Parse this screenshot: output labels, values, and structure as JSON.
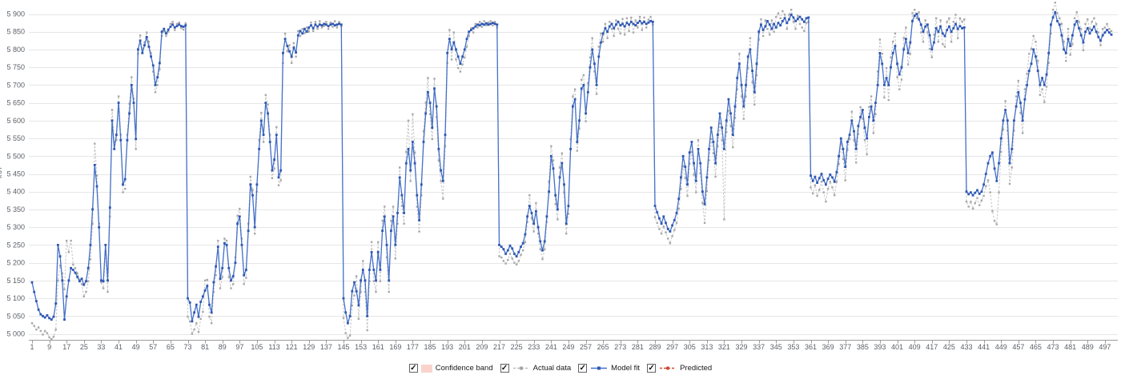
{
  "chart": {
    "y_axis_title": "x67"
  },
  "legend": {
    "items": [
      {
        "id": "confidence-band",
        "label": "Confidence band",
        "checked": true,
        "swatch": "band",
        "color": "#f8d4cc"
      },
      {
        "id": "actual-data",
        "label": "Actual data",
        "checked": true,
        "swatch": "line",
        "line_style": "dashed",
        "color": "#bdbdbd",
        "marker": "square",
        "marker_color": "#a6a6a6"
      },
      {
        "id": "model-fit",
        "label": "Model fit",
        "checked": true,
        "swatch": "line",
        "line_style": "solid",
        "color": "#4470c8",
        "marker": "square",
        "marker_color": "#2e57b2"
      },
      {
        "id": "predicted",
        "label": "Predicted",
        "checked": true,
        "swatch": "line",
        "line_style": "dashed",
        "color": "#cc4a31",
        "marker": "circle",
        "marker_color": "#cc4a31"
      }
    ]
  },
  "chart_data": {
    "type": "line",
    "title": "",
    "xlabel": "",
    "ylabel": "x67",
    "x_start": 1,
    "x_count": 500,
    "y_min": 5000,
    "y_max": 5900,
    "y_step": 50,
    "grid": "horizontal",
    "legend_position": "bottom",
    "x_tick_labels": [
      1,
      9,
      17,
      25,
      33,
      41,
      49,
      57,
      65,
      73,
      81,
      89,
      97,
      105,
      113,
      121,
      129,
      137,
      145,
      153,
      161,
      169,
      177,
      185,
      193,
      201,
      209,
      217,
      225,
      233,
      241,
      249,
      257,
      265,
      273,
      281,
      289,
      297,
      305,
      313,
      321,
      329,
      337,
      345,
      353,
      361,
      369,
      377,
      385,
      393,
      401,
      409,
      417,
      425,
      433,
      441,
      449,
      457,
      465,
      473,
      481,
      489,
      497
    ],
    "y_tick_labels": [
      "5 000",
      "5 050",
      "5 100",
      "5 150",
      "5 200",
      "5 250",
      "5 300",
      "5 350",
      "5 400",
      "5 450",
      "5 500",
      "5 550",
      "5 600",
      "5 650",
      "5 700",
      "5 750",
      "5 800",
      "5 850",
      "5 900"
    ],
    "series": [
      {
        "name": "Actual data",
        "type": "line",
        "line_style": "dashed",
        "color": "#c2c2c2",
        "marker": "square",
        "marker_color": "#a8a8a8",
        "marker_size": 2.4,
        "line_width": 1,
        "values": [
          5030,
          5022,
          5012,
          5018,
          5008,
          4998,
          5008,
          5002,
          4990,
          4985,
          4992,
          5012,
          5150,
          5192,
          5170,
          5125,
          5262,
          5230,
          5262,
          5195,
          5185,
          5170,
          5152,
          5140,
          5105,
          5118,
          5148,
          5210,
          5310,
          5535,
          5445,
          5310,
          5145,
          5128,
          5232,
          5118,
          5330,
          5630,
          5540,
          5545,
          5668,
          5560,
          5398,
          5408,
          5560,
          5648,
          5722,
          5662,
          5520,
          5788,
          5840,
          5800,
          5820,
          5848,
          5822,
          5790,
          5738,
          5680,
          5700,
          5745,
          5838,
          5852,
          5838,
          5850,
          5872,
          5878,
          5855,
          5872,
          5876,
          5860,
          5856,
          5874,
          5048,
          5035,
          5000,
          5012,
          5030,
          5005,
          5042,
          5062,
          5150,
          5152,
          5048,
          5030,
          5118,
          5165,
          5262,
          5128,
          5160,
          5268,
          5262,
          5160,
          5128,
          5140,
          5215,
          5332,
          5352,
          5268,
          5140,
          5158,
          5310,
          5442,
          5405,
          5282,
          5400,
          5545,
          5622,
          5540,
          5672,
          5645,
          5560,
          5438,
          5465,
          5582,
          5418,
          5432,
          5762,
          5845,
          5795,
          5812,
          5762,
          5818,
          5780,
          5852,
          5838,
          5858,
          5846,
          5862,
          5850,
          5876,
          5852,
          5878,
          5858,
          5880,
          5862,
          5866,
          5878,
          5858,
          5876,
          5864,
          5880,
          5862,
          5878,
          5866,
          5045,
          5002,
          4988,
          4995,
          5080,
          5108,
          5162,
          5042,
          5118,
          5205,
          5118,
          5010,
          5148,
          5258,
          5148,
          5118,
          5258,
          5148,
          5318,
          5358,
          5215,
          5118,
          5318,
          5358,
          5212,
          5310,
          5468,
          5360,
          5310,
          5512,
          5600,
          5430,
          5618,
          5510,
          5358,
          5288,
          5390,
          5570,
          5650,
          5720,
          5618,
          5548,
          5718,
          5610,
          5488,
          5430,
          5380,
          5528,
          5762,
          5855,
          5772,
          5848,
          5772,
          5748,
          5738,
          5758,
          5778,
          5808,
          5838,
          5860,
          5848,
          5872,
          5862,
          5878,
          5864,
          5880,
          5868,
          5876,
          5880,
          5868,
          5878,
          5862,
          5218,
          5215,
          5205,
          5198,
          5208,
          5225,
          5212,
          5200,
          5195,
          5205,
          5222,
          5235,
          5258,
          5315,
          5390,
          5325,
          5288,
          5368,
          5282,
          5238,
          5210,
          5238,
          5315,
          5428,
          5528,
          5488,
          5365,
          5322,
          5468,
          5508,
          5398,
          5282,
          5338,
          5548,
          5668,
          5688,
          5515,
          5578,
          5715,
          5728,
          5598,
          5705,
          5778,
          5832,
          5738,
          5675,
          5808,
          5845,
          5822,
          5872,
          5832,
          5878,
          5858,
          5838,
          5882,
          5858,
          5845,
          5886,
          5842,
          5888,
          5852,
          5890,
          5848,
          5882,
          5862,
          5892,
          5855,
          5890,
          5862,
          5884,
          5892,
          5870,
          5328,
          5312,
          5295,
          5282,
          5302,
          5285,
          5268,
          5255,
          5275,
          5292,
          5312,
          5352,
          5408,
          5472,
          5438,
          5388,
          5478,
          5512,
          5448,
          5398,
          5545,
          5452,
          5368,
          5312,
          5402,
          5488,
          5548,
          5508,
          5442,
          5528,
          5592,
          5545,
          5322,
          5568,
          5628,
          5585,
          5525,
          5608,
          5688,
          5788,
          5668,
          5605,
          5668,
          5748,
          5832,
          5708,
          5645,
          5728,
          5828,
          5885,
          5838,
          5882,
          5858,
          5842,
          5882,
          5850,
          5892,
          5902,
          5888,
          5908,
          5898,
          5858,
          5898,
          5912,
          5878,
          5858,
          5895,
          5872,
          5862,
          5852,
          5875,
          5878,
          5412,
          5395,
          5418,
          5388,
          5405,
          5428,
          5398,
          5372,
          5408,
          5428,
          5412,
          5390,
          5428,
          5478,
          5535,
          5492,
          5432,
          5518,
          5548,
          5625,
          5545,
          5482,
          5562,
          5638,
          5605,
          5545,
          5505,
          5638,
          5668,
          5565,
          5618,
          5738,
          5828,
          5788,
          5665,
          5748,
          5658,
          5778,
          5822,
          5845,
          5722,
          5688,
          5715,
          5832,
          5862,
          5758,
          5788,
          5902,
          5912,
          5888,
          5905,
          5848,
          5822,
          5882,
          5848,
          5802,
          5778,
          5842,
          5888,
          5822,
          5882,
          5815,
          5808,
          5878,
          5888,
          5822,
          5878,
          5898,
          5832,
          5888,
          5878,
          5885,
          5372,
          5358,
          5372,
          5352,
          5368,
          5382,
          5362,
          5375,
          5388,
          5415,
          5432,
          5398,
          5345,
          5318,
          5308,
          5398,
          5512,
          5575,
          5655,
          5572,
          5422,
          5468,
          5572,
          5668,
          5712,
          5622,
          5565,
          5688,
          5732,
          5788,
          5802,
          5838,
          5822,
          5768,
          5672,
          5688,
          5652,
          5695,
          5762,
          5845,
          5912,
          5932,
          5902,
          5888,
          5872,
          5822,
          5768,
          5858,
          5785,
          5815,
          5888,
          5905,
          5878,
          5858,
          5798,
          5872,
          5885,
          5858,
          5878,
          5888,
          5872,
          5848,
          5812,
          5858,
          5862,
          5872,
          5858,
          5852
        ]
      },
      {
        "name": "Model fit",
        "type": "line",
        "line_style": "solid",
        "color": "#4470c8",
        "marker": "square",
        "marker_color": "#2e57b2",
        "marker_size": 2.8,
        "line_width": 1.3,
        "values": [
          5145,
          5118,
          5092,
          5068,
          5055,
          5050,
          5046,
          5052,
          5044,
          5040,
          5048,
          5085,
          5250,
          5218,
          5150,
          5040,
          5105,
          5150,
          5185,
          5180,
          5172,
          5160,
          5148,
          5155,
          5138,
          5148,
          5185,
          5250,
          5350,
          5475,
          5415,
          5300,
          5150,
          5148,
          5250,
          5150,
          5355,
          5600,
          5520,
          5560,
          5650,
          5545,
          5420,
          5435,
          5545,
          5620,
          5700,
          5650,
          5548,
          5800,
          5825,
          5790,
          5812,
          5835,
          5808,
          5780,
          5755,
          5700,
          5722,
          5762,
          5850,
          5858,
          5845,
          5856,
          5864,
          5870,
          5862,
          5866,
          5870,
          5866,
          5864,
          5868,
          5100,
          5088,
          5035,
          5060,
          5082,
          5048,
          5090,
          5105,
          5122,
          5135,
          5082,
          5060,
          5145,
          5190,
          5245,
          5155,
          5185,
          5255,
          5250,
          5185,
          5150,
          5162,
          5200,
          5310,
          5330,
          5250,
          5165,
          5180,
          5290,
          5420,
          5390,
          5300,
          5420,
          5520,
          5600,
          5560,
          5650,
          5620,
          5540,
          5460,
          5490,
          5560,
          5440,
          5460,
          5790,
          5830,
          5810,
          5795,
          5780,
          5805,
          5792,
          5840,
          5852,
          5845,
          5858,
          5850,
          5862,
          5868,
          5860,
          5870,
          5865,
          5870,
          5868,
          5872,
          5870,
          5866,
          5870,
          5872,
          5868,
          5870,
          5872,
          5870,
          5100,
          5060,
          5030,
          5050,
          5120,
          5145,
          5120,
          5080,
          5150,
          5180,
          5150,
          5050,
          5180,
          5230,
          5180,
          5150,
          5230,
          5180,
          5290,
          5330,
          5250,
          5150,
          5290,
          5330,
          5250,
          5340,
          5440,
          5390,
          5340,
          5480,
          5520,
          5460,
          5540,
          5480,
          5390,
          5320,
          5420,
          5540,
          5620,
          5680,
          5650,
          5580,
          5690,
          5640,
          5520,
          5460,
          5430,
          5560,
          5790,
          5830,
          5800,
          5820,
          5800,
          5780,
          5760,
          5780,
          5800,
          5830,
          5850,
          5855,
          5860,
          5865,
          5870,
          5868,
          5872,
          5870,
          5874,
          5870,
          5872,
          5875,
          5872,
          5870,
          5250,
          5245,
          5238,
          5225,
          5235,
          5248,
          5240,
          5225,
          5218,
          5230,
          5245,
          5255,
          5280,
          5330,
          5360,
          5340,
          5310,
          5345,
          5300,
          5260,
          5235,
          5260,
          5330,
          5400,
          5500,
          5465,
          5390,
          5350,
          5440,
          5480,
          5420,
          5310,
          5360,
          5520,
          5640,
          5660,
          5540,
          5600,
          5690,
          5700,
          5620,
          5680,
          5750,
          5800,
          5760,
          5700,
          5780,
          5820,
          5845,
          5860,
          5850,
          5865,
          5872,
          5860,
          5870,
          5878,
          5868,
          5872,
          5865,
          5875,
          5870,
          5878,
          5872,
          5868,
          5875,
          5880,
          5874,
          5878,
          5872,
          5876,
          5880,
          5878,
          5360,
          5342,
          5325,
          5310,
          5330,
          5312,
          5295,
          5288,
          5305,
          5320,
          5340,
          5380,
          5440,
          5500,
          5470,
          5420,
          5510,
          5540,
          5480,
          5430,
          5520,
          5480,
          5400,
          5365,
          5440,
          5520,
          5580,
          5540,
          5480,
          5560,
          5620,
          5580,
          5520,
          5600,
          5660,
          5620,
          5560,
          5640,
          5720,
          5760,
          5700,
          5640,
          5700,
          5780,
          5800,
          5740,
          5680,
          5760,
          5850,
          5870,
          5855,
          5865,
          5880,
          5870,
          5858,
          5872,
          5862,
          5875,
          5868,
          5880,
          5888,
          5875,
          5885,
          5898,
          5890,
          5880,
          5886,
          5892,
          5885,
          5878,
          5888,
          5890,
          5445,
          5430,
          5442,
          5425,
          5438,
          5450,
          5432,
          5420,
          5436,
          5448,
          5440,
          5428,
          5455,
          5500,
          5550,
          5520,
          5470,
          5540,
          5560,
          5600,
          5570,
          5520,
          5585,
          5610,
          5630,
          5580,
          5550,
          5610,
          5640,
          5600,
          5650,
          5700,
          5790,
          5760,
          5700,
          5720,
          5700,
          5750,
          5790,
          5810,
          5760,
          5730,
          5750,
          5800,
          5830,
          5790,
          5820,
          5880,
          5895,
          5900,
          5885,
          5870,
          5850,
          5865,
          5870,
          5840,
          5800,
          5820,
          5860,
          5850,
          5865,
          5845,
          5838,
          5855,
          5865,
          5850,
          5860,
          5872,
          5858,
          5866,
          5860,
          5862,
          5400,
          5393,
          5398,
          5390,
          5397,
          5404,
          5394,
          5400,
          5420,
          5450,
          5480,
          5500,
          5510,
          5465,
          5430,
          5480,
          5550,
          5600,
          5630,
          5600,
          5480,
          5520,
          5600,
          5640,
          5680,
          5650,
          5600,
          5660,
          5700,
          5740,
          5760,
          5800,
          5780,
          5740,
          5700,
          5720,
          5700,
          5730,
          5790,
          5870,
          5890,
          5905,
          5880,
          5870,
          5840,
          5800,
          5790,
          5830,
          5810,
          5840,
          5870,
          5880,
          5860,
          5840,
          5820,
          5850,
          5860,
          5845,
          5855,
          5865,
          5850,
          5835,
          5825,
          5840,
          5848,
          5855,
          5848,
          5842
        ]
      },
      {
        "name": "Predicted",
        "type": "line",
        "line_style": "dashed",
        "color": "#cc4a31",
        "marker": "circle",
        "marker_color": "#cc4a31",
        "marker_size": 2.6,
        "line_width": 1.2,
        "values": []
      },
      {
        "name": "Confidence band",
        "type": "band",
        "color": "#f8d4cc",
        "values": []
      }
    ]
  }
}
